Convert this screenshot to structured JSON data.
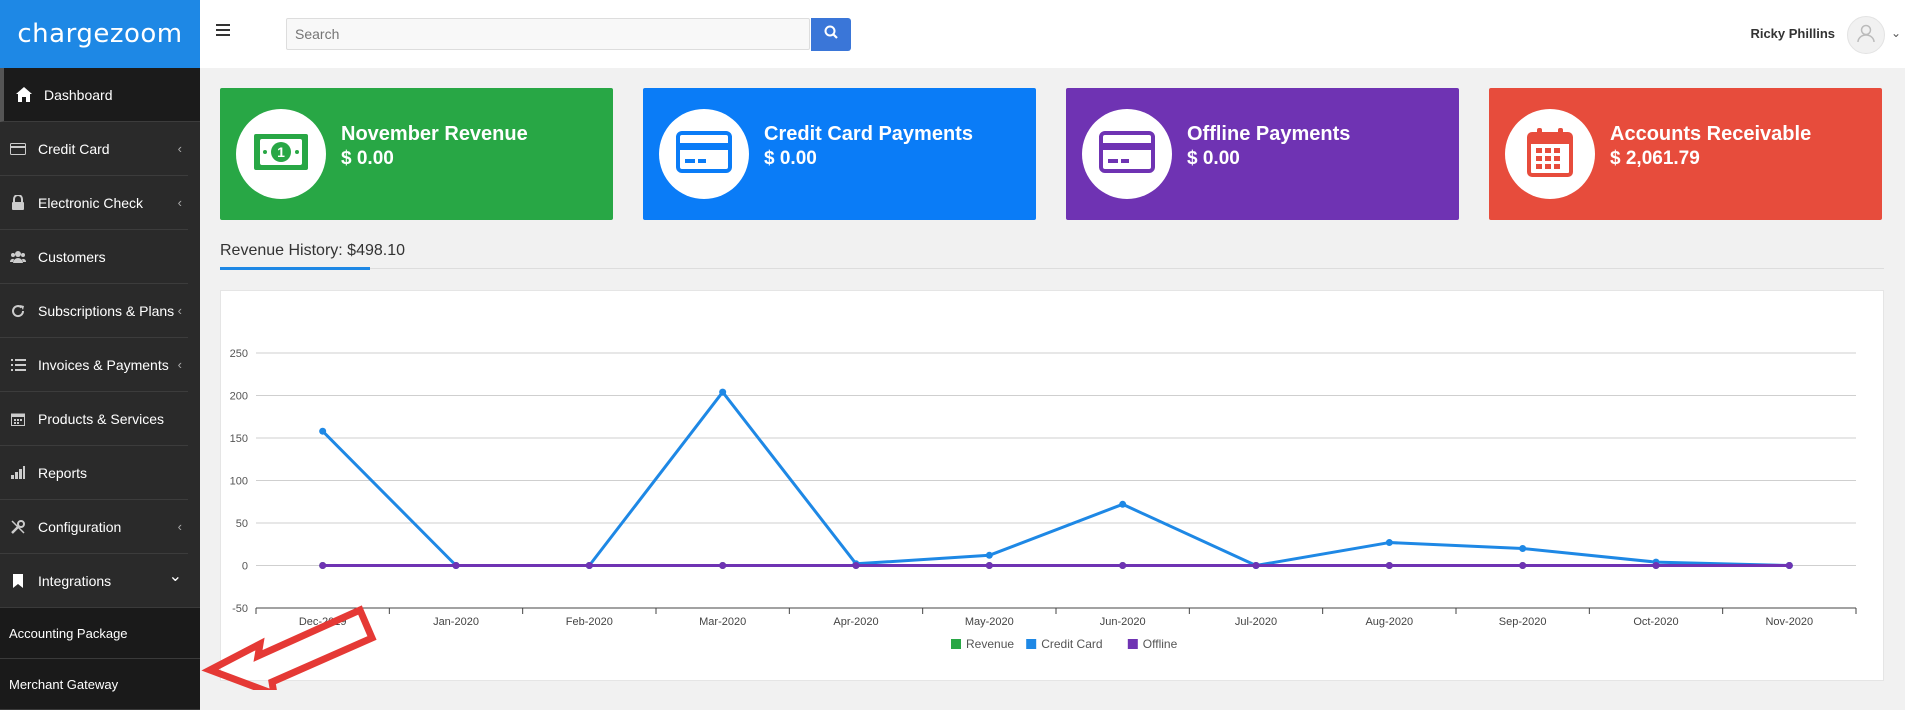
{
  "app": {
    "logo": "chargezoom"
  },
  "sidebar": {
    "items": [
      {
        "label": "Dashboard",
        "icon": "home-icon",
        "chevron": ""
      },
      {
        "label": "Credit Card",
        "icon": "credit-card-icon",
        "chevron": "‹"
      },
      {
        "label": "Electronic Check",
        "icon": "lock-icon",
        "chevron": "‹"
      },
      {
        "label": "Customers",
        "icon": "users-icon",
        "chevron": ""
      },
      {
        "label": "Subscriptions & Plans",
        "icon": "refresh-icon",
        "chevron": "‹"
      },
      {
        "label": "Invoices & Payments",
        "icon": "list-icon",
        "chevron": "‹"
      },
      {
        "label": "Products & Services",
        "icon": "calendar-icon",
        "chevron": ""
      },
      {
        "label": "Reports",
        "icon": "bar-chart-icon",
        "chevron": ""
      },
      {
        "label": "Configuration",
        "icon": "wrench-icon",
        "chevron": "‹"
      },
      {
        "label": "Integrations",
        "icon": "bookmark-icon",
        "chevron": "⌄"
      }
    ],
    "subitems": [
      {
        "label": "Accounting Package"
      },
      {
        "label": "Merchant Gateway"
      }
    ]
  },
  "header": {
    "search_placeholder": "Search",
    "user_name": "Ricky Phillins",
    "caret": "⌄"
  },
  "cards": [
    {
      "label": "November Revenue",
      "value": "$ 0.00",
      "color": "#28a745",
      "icon": "money-icon"
    },
    {
      "label": "Credit Card Payments",
      "value": "$ 0.00",
      "color": "#0a7cf7",
      "icon": "credit-card-icon"
    },
    {
      "label": "Offline Payments",
      "value": "$ 0.00",
      "color": "#6f33b3",
      "icon": "credit-card-icon"
    },
    {
      "label": "Accounts Receivable",
      "value": "$ 2,061.79",
      "color": "#e74c3c",
      "icon": "calendar-icon"
    }
  ],
  "revenue": {
    "title": "Revenue History: $498.10"
  },
  "chart_data": {
    "type": "line",
    "categories": [
      "Dec-2019",
      "Jan-2020",
      "Feb-2020",
      "Mar-2020",
      "Apr-2020",
      "May-2020",
      "Jun-2020",
      "Jul-2020",
      "Aug-2020",
      "Sep-2020",
      "Oct-2020",
      "Nov-2020"
    ],
    "yticks": [
      "-50",
      "0",
      "50",
      "100",
      "150",
      "200",
      "250"
    ],
    "ylim": [
      -50,
      250
    ],
    "grid": true,
    "legend_position": "bottom",
    "series": [
      {
        "name": "Revenue",
        "color": "#28a745",
        "values": [
          0,
          0,
          0,
          0,
          0,
          0,
          0,
          0,
          0,
          0,
          0,
          0
        ]
      },
      {
        "name": "Credit Card",
        "color": "#1e88e5",
        "values": [
          158,
          0,
          0,
          204,
          2,
          12,
          72,
          0,
          27,
          20,
          4,
          0
        ]
      },
      {
        "name": "Offline",
        "color": "#6f33b3",
        "values": [
          0,
          0,
          0,
          0,
          0,
          0,
          0,
          0,
          0,
          0,
          0,
          0
        ]
      }
    ],
    "title": "",
    "xlabel": "",
    "ylabel": ""
  }
}
